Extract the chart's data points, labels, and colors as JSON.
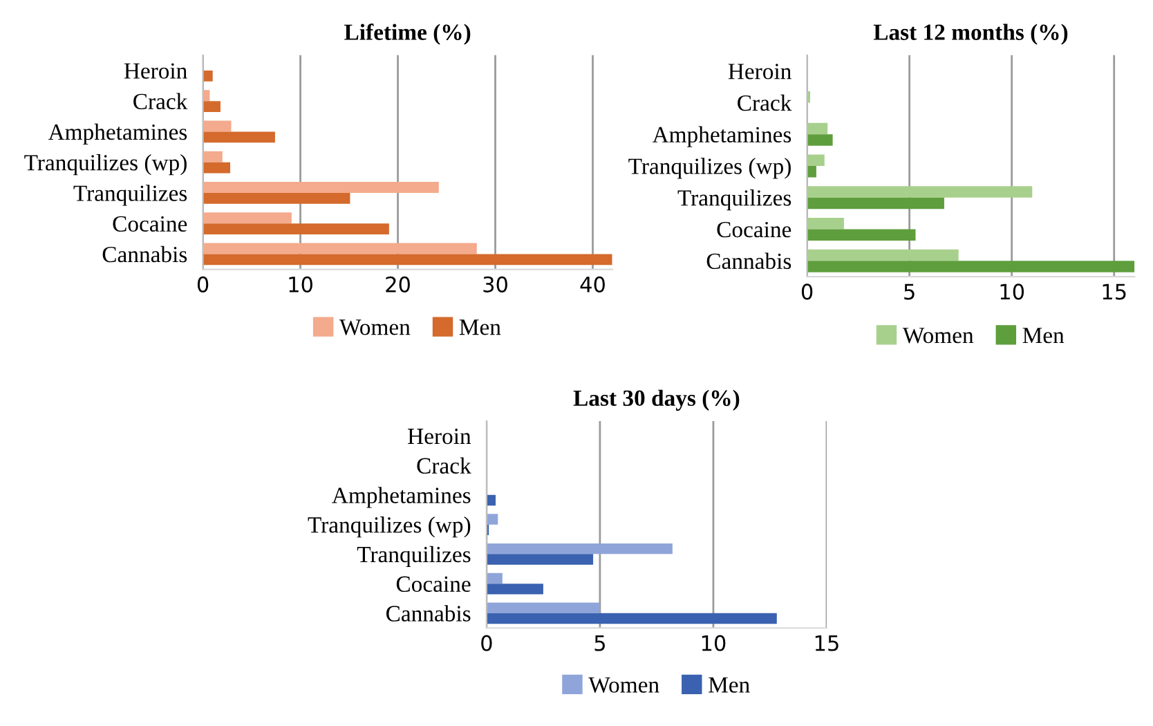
{
  "chart_data": [
    {
      "type": "bar",
      "orientation": "horizontal",
      "title": "Lifetime (%)",
      "categories": [
        "Heroin",
        "Crack",
        "Amphetamines",
        "Tranquilizes (wp)",
        "Tranquilizes",
        "Cocaine",
        "Cannabis"
      ],
      "series": [
        {
          "name": "Women",
          "color": "#f4aa8c",
          "values": [
            null,
            0.7,
            2.9,
            2.0,
            24.2,
            9.1,
            28.1
          ]
        },
        {
          "name": "Men",
          "color": "#d46a2c",
          "values": [
            1.0,
            1.8,
            7.4,
            2.8,
            15.1,
            19.1,
            42
          ]
        }
      ],
      "xlim": [
        0,
        42
      ],
      "xticks": [
        0,
        10,
        20,
        30,
        40
      ],
      "grid": "x",
      "legend": "bottom"
    },
    {
      "type": "bar",
      "orientation": "horizontal",
      "title": "Last 12 months (%)",
      "categories": [
        "Heroin",
        "Crack",
        "Amphetamines",
        "Tranquilizes (wp)",
        "Tranquilizes",
        "Cocaine",
        "Cannabis"
      ],
      "series": [
        {
          "name": "Women",
          "color": "#a8d08d",
          "values": [
            0,
            0.15,
            1.0,
            0.85,
            11.0,
            1.8,
            7.4
          ]
        },
        {
          "name": "Men",
          "color": "#5e9e3c",
          "values": [
            0,
            null,
            1.25,
            0.45,
            6.7,
            5.3,
            16
          ]
        }
      ],
      "xlim": [
        0,
        16
      ],
      "xticks": [
        0,
        5,
        10,
        15
      ],
      "grid": "x",
      "legend": "bottom"
    },
    {
      "type": "bar",
      "orientation": "horizontal",
      "title": "Last 30 days (%)",
      "categories": [
        "Heroin",
        "Crack",
        "Amphetamines",
        "Tranquilizes (wp)",
        "Tranquilizes",
        "Cocaine",
        "Cannabis"
      ],
      "series": [
        {
          "name": "Women",
          "color": "#8fa5da",
          "values": [
            0,
            0,
            null,
            0.5,
            8.2,
            0.7,
            5.0
          ]
        },
        {
          "name": "Men",
          "color": "#3b62b0",
          "values": [
            0,
            0,
            0.4,
            0.1,
            4.7,
            2.5,
            12.8
          ]
        }
      ],
      "xlim": [
        0,
        15
      ],
      "xticks": [
        0,
        5,
        10,
        15
      ],
      "grid": "x",
      "legend": "bottom"
    }
  ]
}
